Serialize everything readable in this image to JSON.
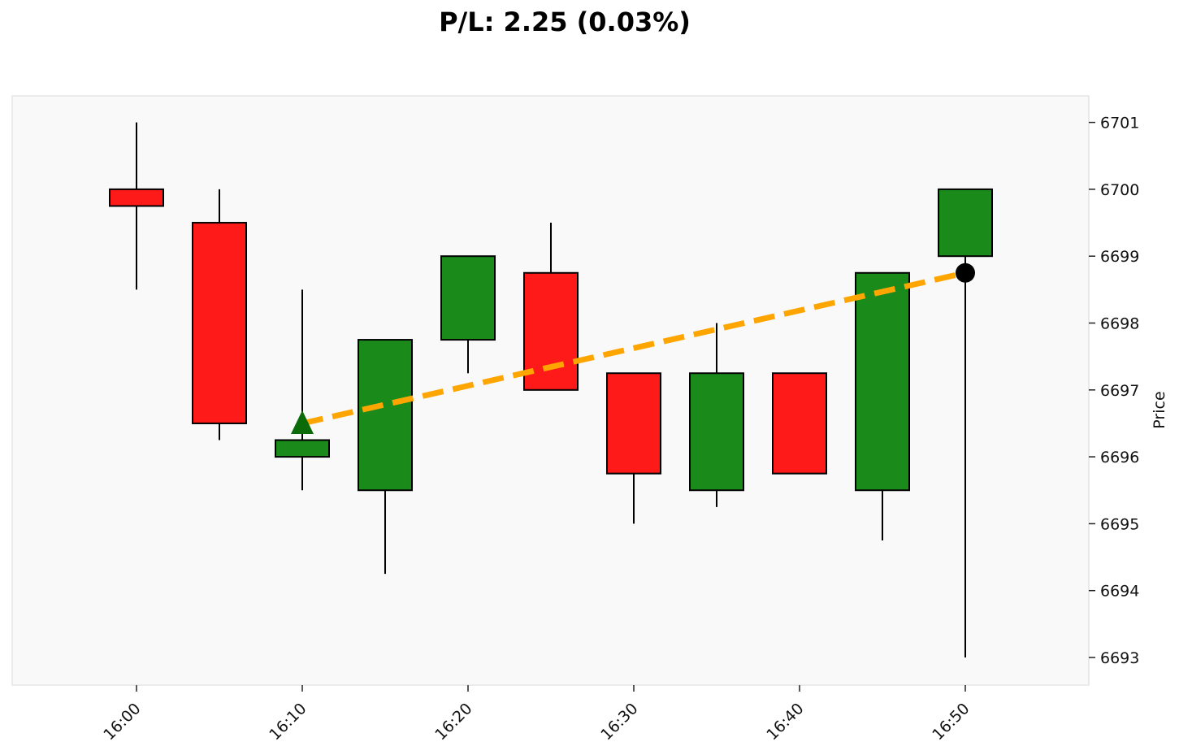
{
  "title": "P/L: 2.25 (0.03%)",
  "chart_data": {
    "type": "candlestick",
    "ylabel": "Price",
    "ylim": [
      6692.6,
      6701.4
    ],
    "y_ticks": [
      6693,
      6694,
      6695,
      6696,
      6697,
      6698,
      6699,
      6700,
      6701
    ],
    "x_ticks": [
      "16:00",
      "16:10",
      "16:20",
      "16:30",
      "16:40",
      "16:50"
    ],
    "candles": [
      {
        "time": "16:00",
        "open": 6700.0,
        "high": 6701.0,
        "low": 6698.5,
        "close": 6699.75
      },
      {
        "time": "16:05",
        "open": 6699.5,
        "high": 6700.0,
        "low": 6696.25,
        "close": 6696.5
      },
      {
        "time": "16:10",
        "open": 6696.0,
        "high": 6698.5,
        "low": 6695.5,
        "close": 6696.25
      },
      {
        "time": "16:15",
        "open": 6695.5,
        "high": 6697.75,
        "low": 6694.25,
        "close": 6697.75
      },
      {
        "time": "16:20",
        "open": 6697.75,
        "high": 6699.0,
        "low": 6697.25,
        "close": 6699.0
      },
      {
        "time": "16:25",
        "open": 6698.75,
        "high": 6699.5,
        "low": 6697.0,
        "close": 6697.0
      },
      {
        "time": "16:30",
        "open": 6697.25,
        "high": 6697.25,
        "low": 6695.0,
        "close": 6695.75
      },
      {
        "time": "16:35",
        "open": 6695.5,
        "high": 6698.0,
        "low": 6695.25,
        "close": 6697.25
      },
      {
        "time": "16:40",
        "open": 6697.25,
        "high": 6697.25,
        "low": 6695.75,
        "close": 6695.75
      },
      {
        "time": "16:45",
        "open": 6695.5,
        "high": 6698.75,
        "low": 6694.75,
        "close": 6698.75
      },
      {
        "time": "16:50",
        "open": 6699.0,
        "high": 6700.0,
        "low": 6693.0,
        "close": 6700.0
      }
    ],
    "entry": {
      "time": "16:10",
      "price": 6696.5,
      "marker": "triangle-up"
    },
    "exit": {
      "time": "16:50",
      "price": 6698.75,
      "marker": "circle"
    },
    "trade_line": {
      "style": "dashed"
    },
    "grid": false
  },
  "colors": {
    "up": "#1a8a1a",
    "down": "#ff1a1a",
    "edge": "#000000",
    "plot_bg": "#f9f9f9",
    "trade_line": "#ffa500",
    "entry_marker": "#0b6b0b",
    "exit_marker": "#000000"
  }
}
